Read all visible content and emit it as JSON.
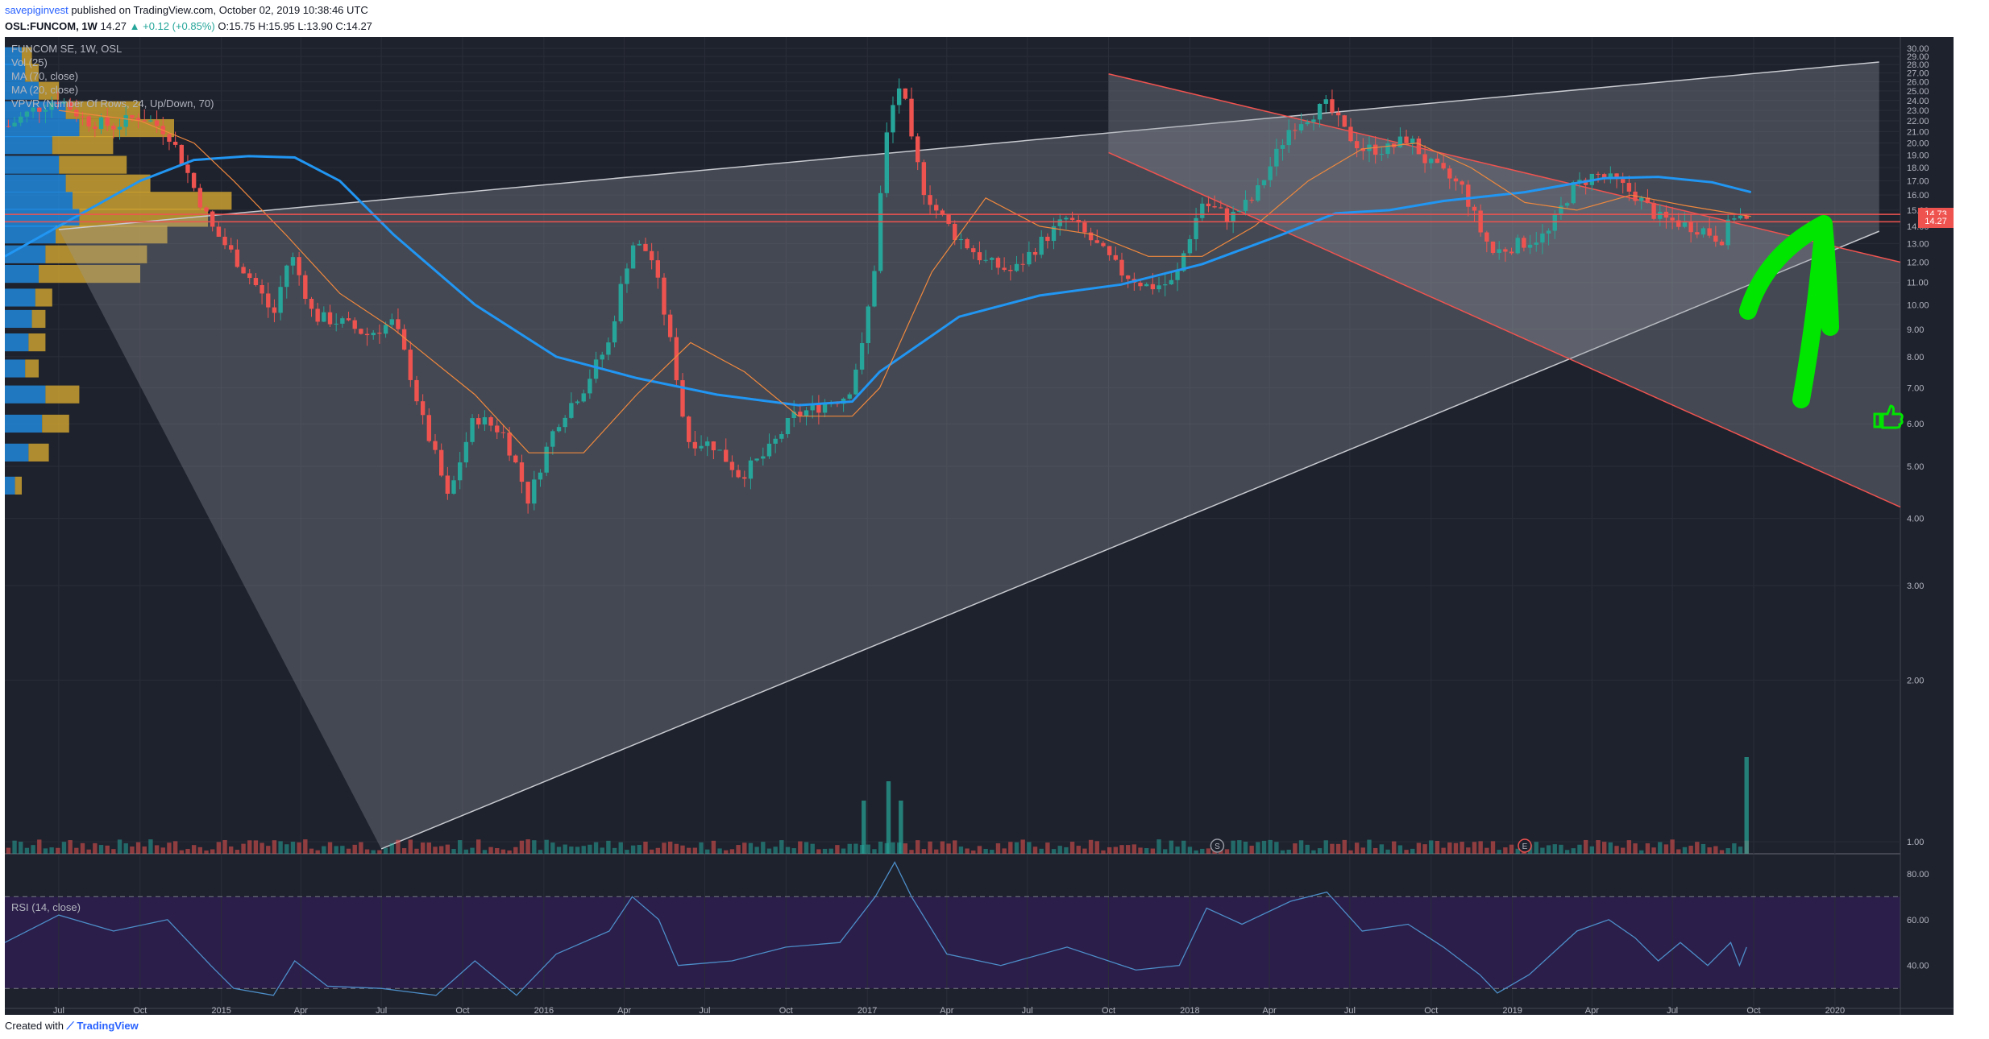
{
  "header": {
    "author": "savepiginvest",
    "published_text": "published on TradingView.com, October 02, 2019 10:38:46 UTC",
    "symbol": "OSL:FUNCOM, 1W",
    "last": "14.27",
    "change": "+0.12 (+0.85%)",
    "change_arrow": "▲",
    "ohlc": "O:15.75 H:15.95 L:13.90 C:14.27"
  },
  "legend": {
    "title": "FUNCOM SE, 1W, OSL",
    "vol": "Vol (25)",
    "ma70": "MA (70, close)",
    "ma20": "MA (20, close)",
    "vpvr": "VPVR (Number Of Rows, 24, Up/Down, 70)"
  },
  "rsi_label": "RSI (14, close)",
  "footer": {
    "created_with": "Created with",
    "brand": "TradingView"
  },
  "price_tags": {
    "upper": "14.73",
    "lower": "14.27"
  },
  "colors": {
    "background": "#1e222d",
    "up": "#26a69a",
    "down": "#ef5350",
    "ma70": "#2196f3",
    "ma20": "#f0883e",
    "vpvr_up": "#2196f3",
    "vpvr_down": "#e0b030",
    "arrow": "#00e600",
    "rsi_band": "#2b1e4a"
  },
  "icons": [
    "thumbs-up-icon",
    "up-arrow-icon",
    "split-marker-icon",
    "earnings-marker-icon"
  ],
  "markers": {
    "split": "S",
    "earnings": "E"
  },
  "chart_data": [
    {
      "type": "candlestick",
      "title": "FUNCOM SE, 1W, OSL",
      "x_labels": [
        "Jul",
        "Oct",
        "2015",
        "Apr",
        "Jul",
        "Oct",
        "2016",
        "Apr",
        "Jul",
        "Oct",
        "2017",
        "Apr",
        "Jul",
        "Oct",
        "2018",
        "Apr",
        "Jul",
        "Oct",
        "2019",
        "Apr",
        "Jul",
        "Oct",
        "2020"
      ],
      "x_range": [
        "2014-05-01",
        "2020-03-15"
      ],
      "x_ticks": [
        "2014-07-01",
        "2014-10-01",
        "2015-01-01",
        "2015-04-01",
        "2015-07-01",
        "2015-10-01",
        "2016-01-01",
        "2016-04-01",
        "2016-07-01",
        "2016-10-01",
        "2017-01-01",
        "2017-04-01",
        "2017-07-01",
        "2017-10-01",
        "2018-01-01",
        "2018-04-01",
        "2018-07-01",
        "2018-10-01",
        "2019-01-01",
        "2019-04-01",
        "2019-07-01",
        "2019-10-01",
        "2020-01-01"
      ],
      "y_scale": "log",
      "y_range": [
        0.95,
        31.5
      ],
      "y_ticks": [
        1.0,
        2.0,
        3.0,
        4.0,
        5.0,
        6.0,
        7.0,
        8.0,
        9.0,
        10.0,
        11.0,
        12.0,
        13.0,
        14.0,
        15.0,
        16.0,
        17.0,
        18.0,
        19.0,
        20.0,
        21.0,
        22.0,
        23.0,
        24.0,
        25.0,
        26.0,
        27.0,
        28.0,
        29.0,
        30.0
      ],
      "close_series": [
        [
          "2014-05-05",
          21.5
        ],
        [
          "2014-06-01",
          23.0
        ],
        [
          "2014-07-01",
          24.2
        ],
        [
          "2014-08-01",
          22.0
        ],
        [
          "2014-09-01",
          21.5
        ],
        [
          "2014-10-01",
          22.5
        ],
        [
          "2014-11-01",
          21.0
        ],
        [
          "2014-12-01",
          16.5
        ],
        [
          "2014-12-20",
          14.0
        ],
        [
          "2015-01-01",
          13.2
        ],
        [
          "2015-01-20",
          12.0
        ],
        [
          "2015-02-10",
          10.8
        ],
        [
          "2015-03-01",
          9.5
        ],
        [
          "2015-03-20",
          12.5
        ],
        [
          "2015-04-15",
          9.5
        ],
        [
          "2015-05-15",
          9.3
        ],
        [
          "2015-06-15",
          8.8
        ],
        [
          "2015-07-15",
          9.3
        ],
        [
          "2015-08-15",
          6.2
        ],
        [
          "2015-09-15",
          4.3
        ],
        [
          "2015-10-15",
          6.2
        ],
        [
          "2015-11-15",
          5.8
        ],
        [
          "2015-12-15",
          4.3
        ],
        [
          "2016-01-15",
          6.0
        ],
        [
          "2016-02-15",
          7.0
        ],
        [
          "2016-03-15",
          8.5
        ],
        [
          "2016-04-10",
          13.0
        ],
        [
          "2016-04-30",
          12.5
        ],
        [
          "2016-05-20",
          9.0
        ],
        [
          "2016-06-10",
          5.6
        ],
        [
          "2016-07-10",
          5.5
        ],
        [
          "2016-08-10",
          4.8
        ],
        [
          "2016-09-10",
          5.3
        ],
        [
          "2016-10-10",
          6.2
        ],
        [
          "2016-11-10",
          6.5
        ],
        [
          "2016-12-10",
          6.8
        ],
        [
          "2016-12-28",
          8.5
        ],
        [
          "2017-01-10",
          12.0
        ],
        [
          "2017-01-25",
          22.0
        ],
        [
          "2017-02-08",
          26.0
        ],
        [
          "2017-02-20",
          20.0
        ],
        [
          "2017-03-05",
          16.5
        ],
        [
          "2017-03-20",
          15.0
        ],
        [
          "2017-04-10",
          13.5
        ],
        [
          "2017-05-15",
          12.0
        ],
        [
          "2017-06-15",
          11.5
        ],
        [
          "2017-07-15",
          13.0
        ],
        [
          "2017-08-15",
          14.5
        ],
        [
          "2017-09-15",
          13.0
        ],
        [
          "2017-10-15",
          11.5
        ],
        [
          "2017-11-15",
          10.8
        ],
        [
          "2017-12-15",
          11.0
        ],
        [
          "2018-01-15",
          15.5
        ],
        [
          "2018-02-15",
          14.5
        ],
        [
          "2018-03-15",
          15.8
        ],
        [
          "2018-04-05",
          18.5
        ],
        [
          "2018-04-25",
          21.5
        ],
        [
          "2018-05-15",
          22.5
        ],
        [
          "2018-06-05",
          23.5
        ],
        [
          "2018-06-25",
          21.0
        ],
        [
          "2018-07-15",
          19.5
        ],
        [
          "2018-08-15",
          19.5
        ],
        [
          "2018-09-05",
          20.5
        ],
        [
          "2018-09-25",
          18.5
        ],
        [
          "2018-10-15",
          17.5
        ],
        [
          "2018-11-05",
          16.5
        ],
        [
          "2018-11-25",
          13.8
        ],
        [
          "2018-12-10",
          12.5
        ],
        [
          "2019-01-10",
          13.0
        ],
        [
          "2019-02-10",
          13.5
        ],
        [
          "2019-03-10",
          16.5
        ],
        [
          "2019-04-05",
          17.5
        ],
        [
          "2019-04-25",
          17.0
        ],
        [
          "2019-05-20",
          16.0
        ],
        [
          "2019-06-15",
          14.5
        ],
        [
          "2019-07-10",
          14.2
        ],
        [
          "2019-08-05",
          13.8
        ],
        [
          "2019-08-25",
          13.2
        ],
        [
          "2019-09-10",
          14.8
        ],
        [
          "2019-09-23",
          14.27
        ]
      ],
      "ma70": [
        [
          "2014-05-01",
          12.3
        ],
        [
          "2014-07-01",
          14.0
        ],
        [
          "2014-10-01",
          17.0
        ],
        [
          "2014-12-01",
          18.6
        ],
        [
          "2015-02-01",
          18.9
        ],
        [
          "2015-03-25",
          18.8
        ],
        [
          "2015-05-15",
          17.0
        ],
        [
          "2015-07-15",
          13.5
        ],
        [
          "2015-10-15",
          10.0
        ],
        [
          "2016-01-15",
          8.0
        ],
        [
          "2016-04-15",
          7.3
        ],
        [
          "2016-07-15",
          6.8
        ],
        [
          "2016-10-15",
          6.5
        ],
        [
          "2016-12-15",
          6.6
        ],
        [
          "2017-01-15",
          7.5
        ],
        [
          "2017-04-15",
          9.5
        ],
        [
          "2017-07-15",
          10.4
        ],
        [
          "2017-10-15",
          10.9
        ],
        [
          "2018-01-15",
          11.9
        ],
        [
          "2018-04-15",
          13.5
        ],
        [
          "2018-06-15",
          14.8
        ],
        [
          "2018-08-15",
          15.0
        ],
        [
          "2018-10-15",
          15.6
        ],
        [
          "2019-01-15",
          16.2
        ],
        [
          "2019-04-15",
          17.2
        ],
        [
          "2019-06-15",
          17.3
        ],
        [
          "2019-08-15",
          16.9
        ],
        [
          "2019-09-28",
          16.2
        ]
      ],
      "ma20": [
        [
          "2014-07-01",
          23.0
        ],
        [
          "2014-10-01",
          22.0
        ],
        [
          "2014-12-01",
          20.0
        ],
        [
          "2015-01-15",
          17.0
        ],
        [
          "2015-03-15",
          13.5
        ],
        [
          "2015-05-15",
          10.5
        ],
        [
          "2015-07-15",
          9.0
        ],
        [
          "2015-10-15",
          6.8
        ],
        [
          "2015-12-15",
          5.3
        ],
        [
          "2016-02-15",
          5.3
        ],
        [
          "2016-04-15",
          6.8
        ],
        [
          "2016-06-15",
          8.5
        ],
        [
          "2016-08-15",
          7.5
        ],
        [
          "2016-10-15",
          6.2
        ],
        [
          "2016-12-15",
          6.2
        ],
        [
          "2017-01-15",
          7.0
        ],
        [
          "2017-03-15",
          11.5
        ],
        [
          "2017-05-15",
          15.8
        ],
        [
          "2017-07-15",
          14.0
        ],
        [
          "2017-09-15",
          13.5
        ],
        [
          "2017-11-15",
          12.3
        ],
        [
          "2018-01-15",
          12.3
        ],
        [
          "2018-03-15",
          14.0
        ],
        [
          "2018-05-15",
          17.0
        ],
        [
          "2018-07-15",
          19.5
        ],
        [
          "2018-09-15",
          20.0
        ],
        [
          "2018-11-15",
          18.0
        ],
        [
          "2019-01-15",
          15.5
        ],
        [
          "2019-03-15",
          15.0
        ],
        [
          "2019-05-15",
          16.0
        ],
        [
          "2019-07-15",
          15.3
        ],
        [
          "2019-09-28",
          14.6
        ]
      ],
      "volume_spikes": [
        [
          "2016-12-28",
          0.55
        ],
        [
          "2017-01-25",
          0.75
        ],
        [
          "2017-02-08",
          0.55
        ],
        [
          "2019-09-23",
          1.0
        ]
      ],
      "horizontal_lines": [
        14.73,
        14.27
      ],
      "ascending_channel": {
        "lower": [
          [
            "2015-07-01",
            0.97
          ],
          [
            "2020-02-20",
            13.7
          ]
        ],
        "upper": [
          [
            "2014-07-01",
            13.8
          ],
          [
            "2020-02-20",
            28.3
          ]
        ]
      },
      "descending_channel": {
        "upper": [
          [
            "2017-10-01",
            26.9
          ],
          [
            "2020-03-15",
            12.0
          ]
        ],
        "lower": [
          [
            "2017-10-01",
            19.2
          ],
          [
            "2020-03-15",
            4.2
          ]
        ]
      }
    },
    {
      "type": "line",
      "title": "RSI (14, close)",
      "y_range": [
        22,
        88
      ],
      "y_ticks": [
        40.0,
        60.0,
        80.0
      ],
      "bands": [
        30,
        70
      ],
      "series": [
        [
          "2014-05-01",
          50
        ],
        [
          "2014-07-01",
          62
        ],
        [
          "2014-09-01",
          55
        ],
        [
          "2014-11-01",
          60
        ],
        [
          "2014-12-20",
          40
        ],
        [
          "2015-01-15",
          30
        ],
        [
          "2015-03-01",
          27
        ],
        [
          "2015-03-25",
          42
        ],
        [
          "2015-05-01",
          31
        ],
        [
          "2015-07-01",
          30
        ],
        [
          "2015-09-01",
          27
        ],
        [
          "2015-10-15",
          42
        ],
        [
          "2015-12-01",
          27
        ],
        [
          "2016-01-15",
          45
        ],
        [
          "2016-03-15",
          55
        ],
        [
          "2016-04-10",
          70
        ],
        [
          "2016-05-10",
          60
        ],
        [
          "2016-06-01",
          40
        ],
        [
          "2016-08-01",
          42
        ],
        [
          "2016-10-01",
          48
        ],
        [
          "2016-12-01",
          50
        ],
        [
          "2017-01-10",
          70
        ],
        [
          "2017-02-01",
          85
        ],
        [
          "2017-02-20",
          70
        ],
        [
          "2017-04-01",
          45
        ],
        [
          "2017-06-01",
          40
        ],
        [
          "2017-08-15",
          48
        ],
        [
          "2017-11-01",
          38
        ],
        [
          "2017-12-20",
          40
        ],
        [
          "2018-01-20",
          65
        ],
        [
          "2018-03-01",
          58
        ],
        [
          "2018-04-25",
          68
        ],
        [
          "2018-06-05",
          72
        ],
        [
          "2018-07-15",
          55
        ],
        [
          "2018-09-05",
          58
        ],
        [
          "2018-10-15",
          48
        ],
        [
          "2018-11-25",
          36
        ],
        [
          "2018-12-15",
          28
        ],
        [
          "2019-01-20",
          36
        ],
        [
          "2019-03-15",
          55
        ],
        [
          "2019-04-20",
          60
        ],
        [
          "2019-05-20",
          52
        ],
        [
          "2019-06-15",
          42
        ],
        [
          "2019-07-10",
          50
        ],
        [
          "2019-08-10",
          40
        ],
        [
          "2019-09-05",
          50
        ],
        [
          "2019-09-15",
          40
        ],
        [
          "2019-09-23",
          48
        ]
      ]
    }
  ]
}
